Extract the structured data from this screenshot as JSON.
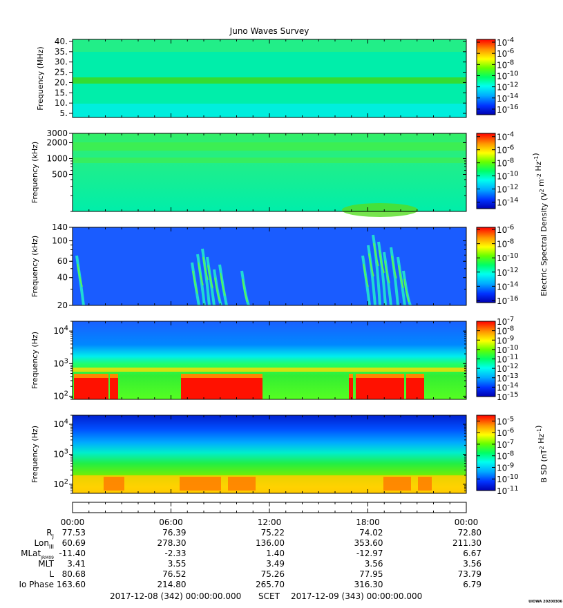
{
  "title": "Juno Waves Survey",
  "footer": {
    "start": "2017-12-08 (342) 00:00:00.000",
    "scet": "SCET",
    "end": "2017-12-09 (343) 00:00:00.000",
    "stamp": "UIOWA 20200306"
  },
  "chart_data": [
    {
      "type": "heatmap",
      "panel": "HFR high",
      "ylabel": "Frequency (MHz)",
      "yticks": [
        "40.",
        "35.",
        "30.",
        "25.",
        "20.",
        "15.",
        "10.",
        "5."
      ],
      "ylim": [
        3,
        41
      ],
      "colorbar": {
        "ticks": [
          "10^-4",
          "10^-6",
          "10^-8",
          "10^-10",
          "10^-12",
          "10^-14",
          "10^-16"
        ],
        "range_exp": [
          -17,
          -3.5
        ]
      },
      "features": [
        "uniform background near 10^-12",
        "persistent emission band near 21 MHz"
      ]
    },
    {
      "type": "heatmap",
      "panel": "HFR low",
      "ylabel": "Frequency (kHz)",
      "yticks": [
        "3000",
        "2000",
        "1000",
        "500"
      ],
      "ylim": [
        100,
        3000
      ],
      "colorbar": {
        "ticks": [
          "10^-4",
          "10^-6",
          "10^-8",
          "10^-10",
          "10^-12",
          "10^-14"
        ],
        "range_exp": [
          -15,
          -3.5
        ]
      },
      "colorbar_label": "Electric Spectral Density (V^2 m^-2 Hz^-1)",
      "features": [
        "bands near 1000 and 2000 kHz",
        "enhancement near bottom around 19:00"
      ]
    },
    {
      "type": "heatmap",
      "panel": "LFR high",
      "ylabel": "Frequency (kHz)",
      "yticks": [
        "140",
        "100",
        "60",
        "40",
        "20"
      ],
      "ylim": [
        20,
        140
      ],
      "colorbar": {
        "ticks": [
          "10^-6",
          "10^-8",
          "10^-10",
          "10^-12",
          "10^-14",
          "10^-16"
        ],
        "range_exp": [
          -16.3,
          -5.7
        ]
      },
      "features": [
        "emission bursts around 07:30-09:00 and 17:30-20:00"
      ]
    },
    {
      "type": "heatmap",
      "panel": "LFR/WFR E",
      "ylabel": "Frequency (Hz)",
      "yticks": [
        "10^4",
        "10^3",
        "10^2"
      ],
      "ylim": [
        80,
        20000
      ],
      "colorbar": {
        "ticks": [
          "10^-7",
          "10^-8",
          "10^-9",
          "10^-10",
          "10^-11",
          "10^-12",
          "10^-13",
          "10^-14",
          "10^-15"
        ],
        "range_exp": [
          -15,
          -7
        ]
      },
      "features": [
        "intense low-frequency emission 00:00-01:40, 06:40-11:40, 17:00-20:30",
        "line near 500 Hz"
      ]
    },
    {
      "type": "heatmap",
      "panel": "B field",
      "ylabel": "Frequency (Hz)",
      "yticks": [
        "10^4",
        "10^3",
        "10^2"
      ],
      "ylim": [
        50,
        20000
      ],
      "colorbar": {
        "ticks": [
          "10^-5",
          "10^-6",
          "10^-7",
          "10^-8",
          "10^-9",
          "10^-10",
          "10^-11"
        ],
        "range_exp": [
          -11,
          -4.5
        ]
      },
      "colorbar_label": "B SD (nT^2 Hz^-1)",
      "features": [
        "low-frequency enhancement below ~200 Hz throughout"
      ]
    }
  ],
  "ephemeris": {
    "times": [
      "00:00",
      "06:00",
      "12:00",
      "18:00",
      "00:00"
    ],
    "rows": [
      {
        "label": "R",
        "sub": "J",
        "values": [
          "77.53",
          "76.39",
          "75.22",
          "74.02",
          "72.80"
        ]
      },
      {
        "label": "Lon",
        "sub": "III",
        "values": [
          "60.69",
          "278.30",
          "136.00",
          "353.60",
          "211.30"
        ]
      },
      {
        "label": "MLat",
        "sub": "JRM09",
        "values": [
          "-11.40",
          "-2.33",
          "1.40",
          "-12.97",
          "6.67"
        ]
      },
      {
        "label": "MLT",
        "sub": "",
        "values": [
          "3.41",
          "3.55",
          "3.49",
          "3.56",
          "3.56"
        ]
      },
      {
        "label": "L",
        "sub": "",
        "values": [
          "80.68",
          "76.52",
          "75.26",
          "77.95",
          "73.79"
        ]
      },
      {
        "label": "Io Phase",
        "sub": "",
        "values": [
          "163.60",
          "214.80",
          "265.70",
          "316.30",
          "6.79"
        ]
      }
    ]
  }
}
